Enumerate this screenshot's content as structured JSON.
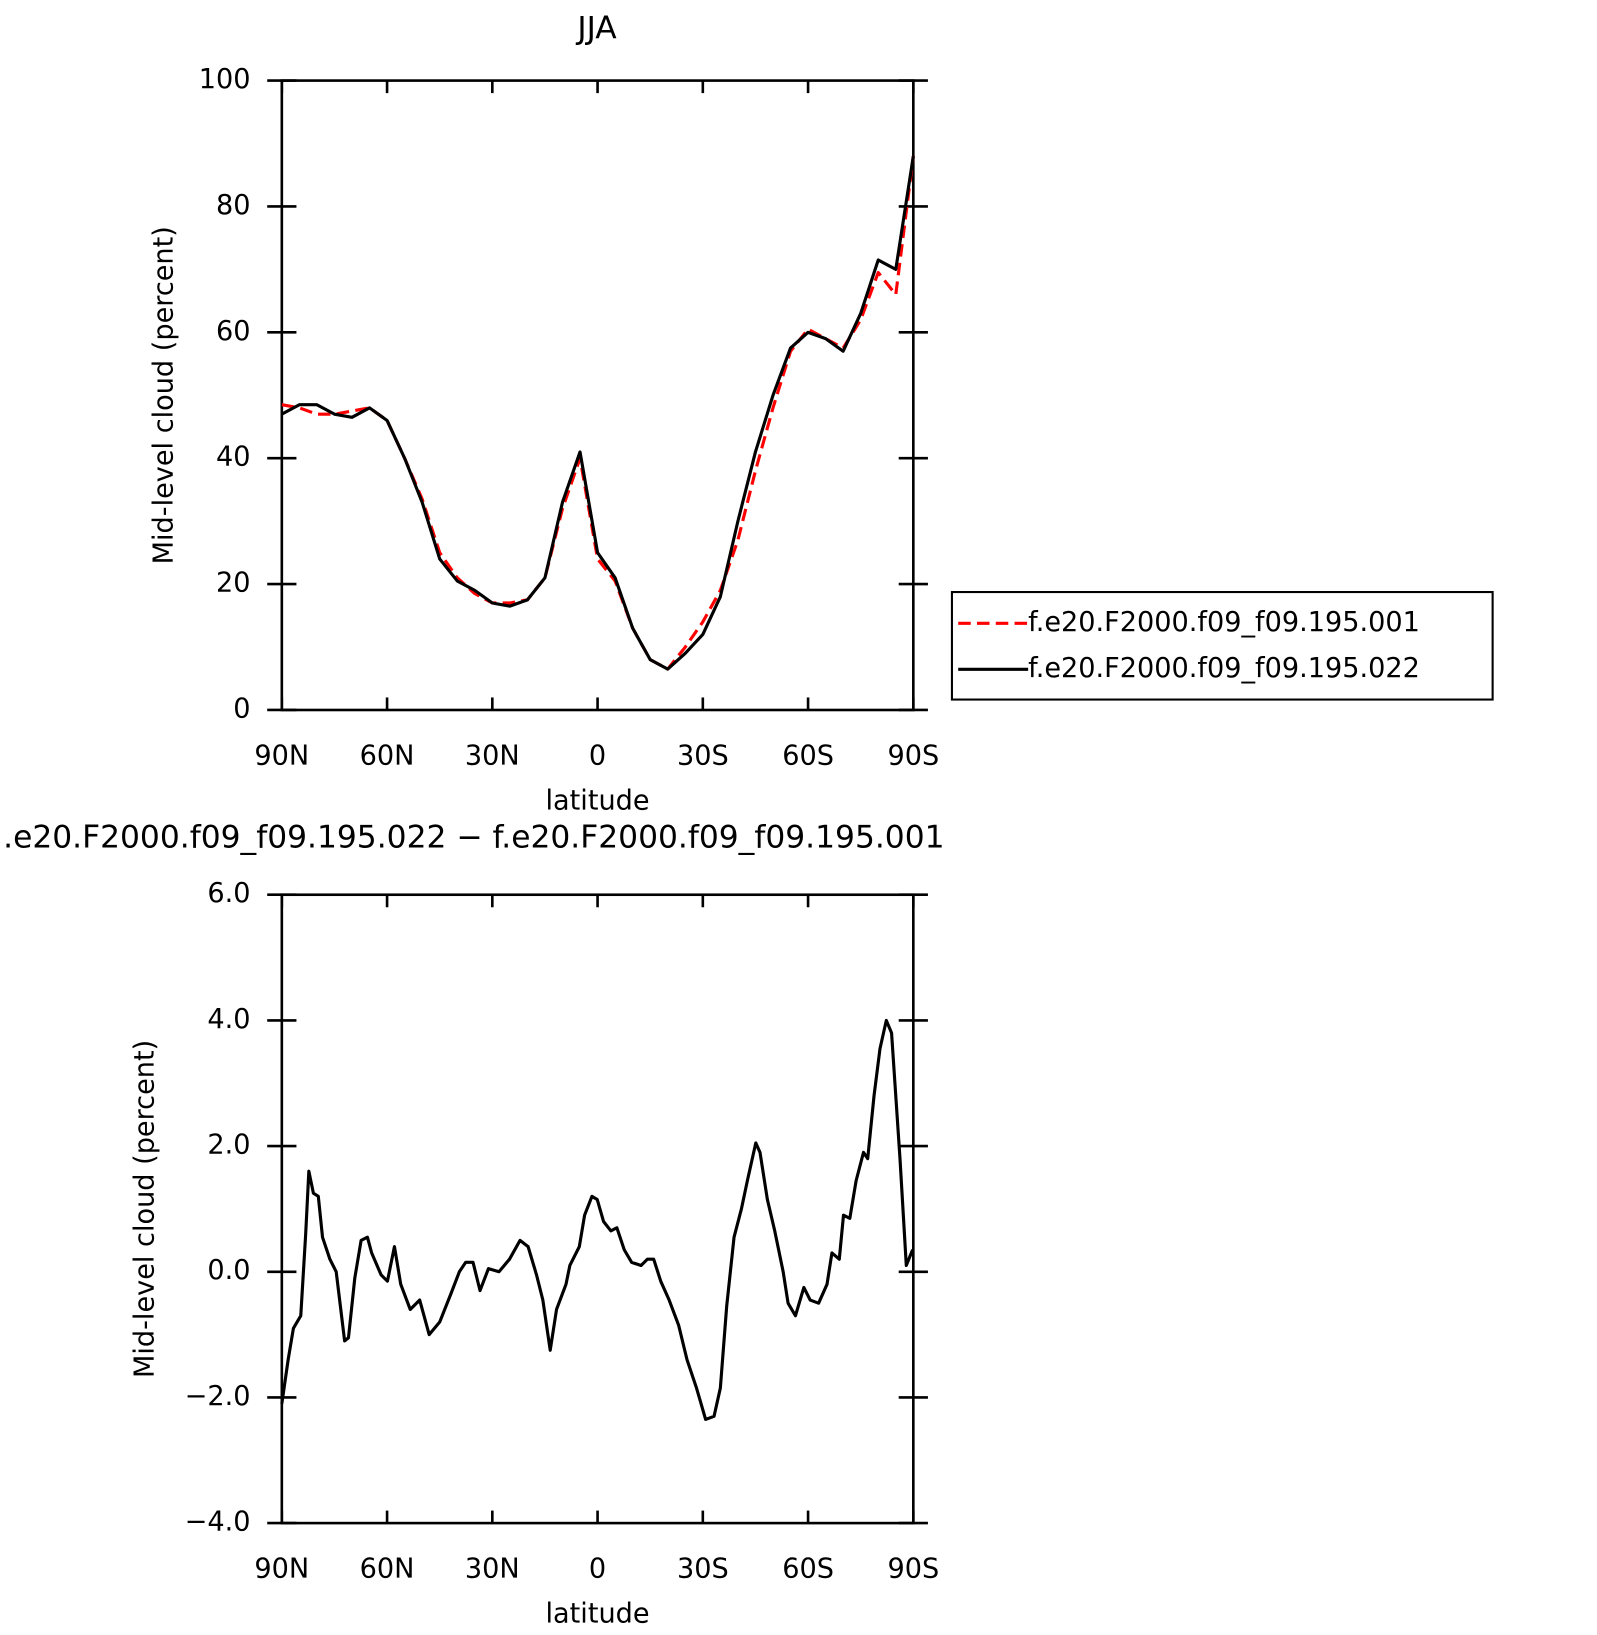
{
  "chart_data": [
    {
      "type": "line",
      "title": "JJA",
      "xlabel": "latitude",
      "ylabel": "Mid-level cloud (percent)",
      "x": [
        90,
        85,
        80,
        75,
        70,
        65,
        60,
        55,
        50,
        45,
        40,
        35,
        30,
        25,
        20,
        15,
        10,
        5,
        0,
        -5,
        -10,
        -15,
        -20,
        -25,
        -30,
        -35,
        -40,
        -45,
        -50,
        -55,
        -60,
        -65,
        -70,
        -75,
        -80,
        -85,
        -90
      ],
      "series": [
        {
          "name": "f.e20.F2000.f09_f09.195.001",
          "color": "#ff0000",
          "linestyle": "dashed",
          "values": [
            48.5,
            48,
            47,
            47,
            47.5,
            48,
            46,
            40,
            33.5,
            25,
            21,
            18.5,
            17,
            17,
            17.5,
            21,
            32,
            40,
            24,
            20.5,
            13,
            8,
            6.5,
            10,
            14,
            19,
            27,
            38,
            48,
            57,
            60.5,
            59,
            57.5,
            62,
            69.5,
            66,
            88
          ]
        },
        {
          "name": "f.e20.F2000.f09_f09.195.022",
          "color": "#000000",
          "linestyle": "solid",
          "values": [
            47,
            48.5,
            48.5,
            47,
            46.5,
            48,
            46,
            40,
            33,
            24,
            20.5,
            19,
            17,
            16.5,
            17.5,
            21,
            33,
            41,
            25,
            21,
            13,
            8,
            6.5,
            9,
            12,
            18,
            30,
            41,
            50,
            57.5,
            60,
            59,
            57,
            63,
            71.5,
            70,
            88
          ]
        }
      ],
      "xlim": [
        90,
        -90
      ],
      "xticks": [
        {
          "value": 90,
          "label": "90N"
        },
        {
          "value": 60,
          "label": "60N"
        },
        {
          "value": 30,
          "label": "30N"
        },
        0,
        {
          "value": -30,
          "label": "30S"
        },
        {
          "value": -60,
          "label": "60S"
        },
        {
          "value": -90,
          "label": "90S"
        }
      ],
      "ylim": [
        0,
        100
      ],
      "yticks": [
        0,
        20,
        40,
        60,
        80,
        100
      ],
      "legend": "right"
    },
    {
      "type": "line",
      "title": ".e20.F2000.f09_f09.195.022 − f.e20.F2000.f09_f09.195.001",
      "xlabel": "latitude",
      "ylabel": "Mid-level cloud (percent)",
      "x": [
        90,
        88.2,
        86.7,
        84.6,
        83.2,
        82.3,
        81,
        79.6,
        78.4,
        76.3,
        74.5,
        72.1,
        71,
        69.2,
        67.4,
        65.6,
        64.4,
        61.7,
        59.9,
        57.9,
        56.1,
        53.4,
        50.7,
        48,
        45,
        41.8,
        39.4,
        37.6,
        35.5,
        33.5,
        31.1,
        28.1,
        25.1,
        22.1,
        19.8,
        17.4,
        15.6,
        13.5,
        11.7,
        9,
        7.9,
        5.2,
        3.7,
        1.6,
        0.1,
        -1.7,
        -3.8,
        -5.5,
        -7.6,
        -9.7,
        -12.4,
        -14.2,
        -16,
        -18,
        -20.4,
        -23.1,
        -25.5,
        -28.2,
        -30.8,
        -33.2,
        -35,
        -36.8,
        -38.9,
        -41,
        -42.7,
        -45.1,
        -46.3,
        -48.4,
        -50.5,
        -52.9,
        -54.3,
        -56.4,
        -58.8,
        -60.6,
        -63,
        -65.4,
        -66.8,
        -68.9,
        -70.1,
        -71.9,
        -73.7,
        -75.8,
        -77,
        -78.8,
        -80.5,
        -82.3,
        -83.8,
        -85,
        -86.2,
        -88,
        -89.8
      ],
      "color": "#000000",
      "values": [
        -2.1,
        -1.4,
        -0.9,
        -0.7,
        0.6,
        1.6,
        1.25,
        1.2,
        0.55,
        0.2,
        0,
        -1.1,
        -1.05,
        -0.1,
        0.5,
        0.55,
        0.3,
        -0.05,
        -0.15,
        0.4,
        -0.2,
        -0.6,
        -0.45,
        -1.0,
        -0.8,
        -0.35,
        0,
        0.15,
        0.15,
        -0.3,
        0.05,
        0,
        0.2,
        0.5,
        0.4,
        -0.05,
        -0.45,
        -1.25,
        -0.6,
        -0.2,
        0.1,
        0.4,
        0.9,
        1.2,
        1.15,
        0.8,
        0.65,
        0.7,
        0.35,
        0.15,
        0.1,
        0.2,
        0.2,
        -0.15,
        -0.45,
        -0.85,
        -1.4,
        -1.85,
        -2.35,
        -2.3,
        -1.85,
        -0.55,
        0.55,
        1.0,
        1.45,
        2.05,
        1.9,
        1.15,
        0.65,
        0,
        -0.5,
        -0.7,
        -0.25,
        -0.45,
        -0.5,
        -0.2,
        0.3,
        0.2,
        0.9,
        0.85,
        1.45,
        1.9,
        1.8,
        2.8,
        3.55,
        4.0,
        3.8,
        2.8,
        1.8,
        0.1,
        0.35
      ],
      "xlim": [
        90,
        -90
      ],
      "xticks": [
        {
          "value": 90,
          "label": "90N"
        },
        {
          "value": 60,
          "label": "60N"
        },
        {
          "value": 30,
          "label": "30N"
        },
        0,
        {
          "value": -30,
          "label": "30S"
        },
        {
          "value": -60,
          "label": "60S"
        },
        {
          "value": -90,
          "label": "90S"
        }
      ],
      "ylim": [
        -4,
        6
      ],
      "yticks": [
        {
          "value": -4,
          "label": "−4.0"
        },
        {
          "value": -2,
          "label": "−2.0"
        },
        {
          "value": 0,
          "label": "0.0"
        },
        {
          "value": 2,
          "label": "2.0"
        },
        {
          "value": 4,
          "label": "4.0"
        },
        {
          "value": 6,
          "label": "6.0"
        }
      ]
    }
  ]
}
